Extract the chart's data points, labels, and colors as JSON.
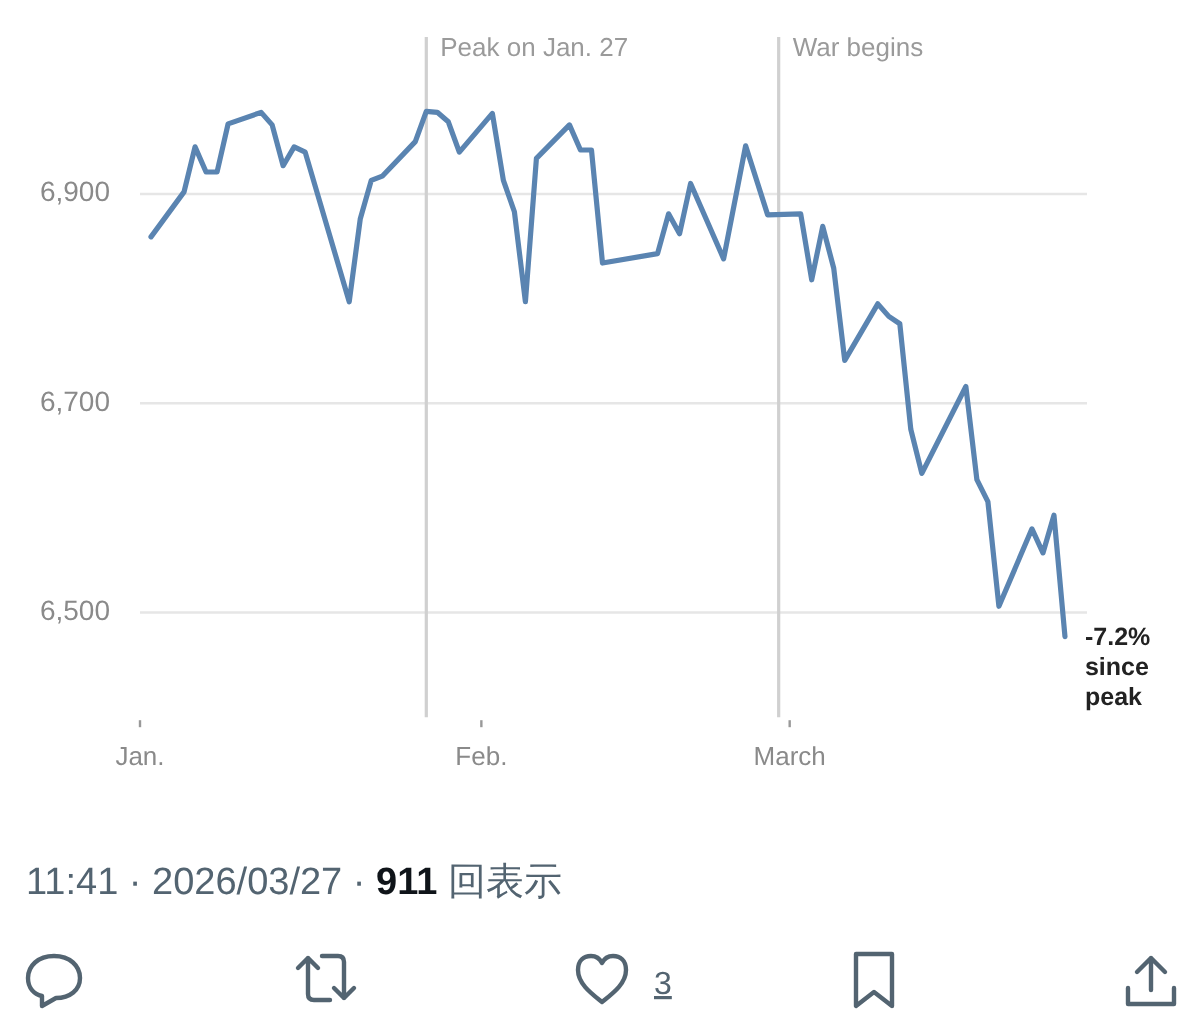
{
  "chart_data": {
    "type": "line",
    "x": [
      "--01-02",
      "--01-05",
      "--01-06",
      "--01-07",
      "--01-08",
      "--01-09",
      "--01-12",
      "--01-13",
      "--01-14",
      "--01-15",
      "--01-16",
      "--01-20",
      "--01-21",
      "--01-22",
      "--01-23",
      "--01-26",
      "--01-27",
      "--01-28",
      "--01-29",
      "--01-30",
      "--02-02",
      "--02-03",
      "--02-04",
      "--02-05",
      "--02-06",
      "--02-09",
      "--02-10",
      "--02-11",
      "--02-12",
      "--02-17",
      "--02-18",
      "--02-19",
      "--02-20",
      "--02-23",
      "--02-25",
      "--02-27",
      "--03-02",
      "--03-03",
      "--03-04",
      "--03-05",
      "--03-06",
      "--03-09",
      "--03-10",
      "--03-11",
      "--03-12",
      "--03-13",
      "--03-17",
      "--03-18",
      "--03-19",
      "--03-20",
      "--03-23",
      "--03-24",
      "--03-25",
      "--03-26"
    ],
    "series": [
      {
        "color": "#5a84b1",
        "values": [
          6859,
          6902,
          6945,
          6921,
          6921,
          6967,
          6978,
          6966,
          6927,
          6945,
          6940,
          6797,
          6876,
          6913,
          6917,
          6950,
          6979,
          6978,
          6969,
          6940,
          6977,
          6913,
          6883,
          6797,
          6934,
          6966,
          6942,
          6942,
          6834,
          6843,
          6881,
          6862,
          6910,
          6838,
          6946,
          6880,
          6881,
          6818,
          6869,
          6829,
          6741,
          6795,
          6783,
          6776,
          6675,
          6633,
          6716,
          6627,
          6606,
          6506,
          6580,
          6557,
          6593,
          6477
        ]
      }
    ],
    "xlim": [
      "--01-01",
      "--03-28"
    ],
    "ylim": [
      6400,
      7050
    ],
    "xticks": [
      {
        "value": "--01-01",
        "label": "Jan."
      },
      {
        "value": "--02-01",
        "label": "Feb."
      },
      {
        "value": "--03-01",
        "label": "March"
      }
    ],
    "yticks": [
      {
        "value": 6500,
        "label": "6,500"
      },
      {
        "value": 6700,
        "label": "6,700"
      },
      {
        "value": 6900,
        "label": "6,900"
      }
    ],
    "grid": "y",
    "ref_lines": [
      {
        "axis": "x",
        "value": "--01-27",
        "label": "Peak on Jan. 27",
        "color": "#d0d0d0"
      },
      {
        "axis": "x",
        "value": "--02-28",
        "label": "War begins",
        "color": "#d0d0d0"
      }
    ],
    "annotations": [
      {
        "text": "-7.2% since peak",
        "x": "--03-26",
        "y": 6477
      },
      "11:41 · 2026/03/27 · 911 回表示",
      "3"
    ]
  }
}
